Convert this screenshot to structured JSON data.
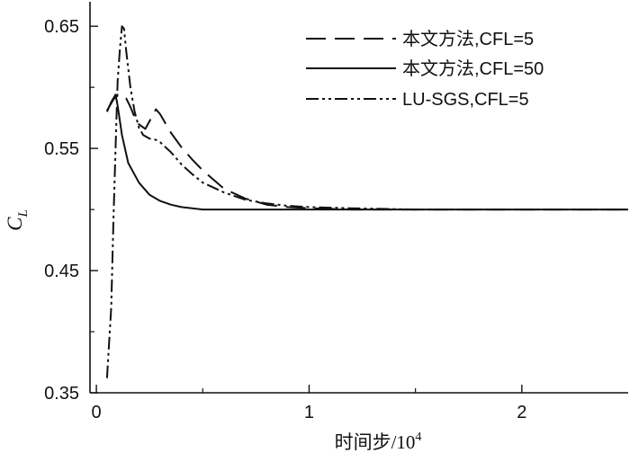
{
  "chart_data": {
    "type": "line",
    "xlabel": "时间步/10",
    "xlabel_sup": "4",
    "ylabel": "C",
    "ylabel_sub": "L",
    "xlim": [
      -0.03,
      2.5
    ],
    "ylim": [
      0.35,
      0.67
    ],
    "x_ticks": [
      0,
      1,
      2
    ],
    "x_tick_labels": [
      "0",
      "1",
      "2"
    ],
    "y_ticks": [
      0.35,
      0.45,
      0.55,
      0.65
    ],
    "y_tick_labels": [
      "0.35",
      "0.45",
      "0.55",
      "0.65"
    ],
    "grid": false,
    "legend_position": "top-right",
    "series": [
      {
        "name": "本文方法,CFL=5",
        "style": "dashed",
        "x": [
          0.05,
          0.08,
          0.1,
          0.12,
          0.14,
          0.16,
          0.19,
          0.23,
          0.28,
          0.3,
          0.35,
          0.4,
          0.45,
          0.5,
          0.6,
          0.7,
          0.8,
          0.9,
          1.0,
          1.2,
          1.5,
          2.0,
          2.5
        ],
        "y": [
          0.581,
          0.59,
          0.594,
          0.594,
          0.591,
          0.584,
          0.571,
          0.566,
          0.582,
          0.578,
          0.563,
          0.551,
          0.541,
          0.532,
          0.517,
          0.509,
          0.504,
          0.502,
          0.501,
          0.5,
          0.5,
          0.5,
          0.5
        ]
      },
      {
        "name": "本文方法,CFL=50",
        "style": "solid",
        "x": [
          0.05,
          0.07,
          0.09,
          0.1,
          0.12,
          0.15,
          0.2,
          0.25,
          0.3,
          0.35,
          0.4,
          0.5,
          0.6,
          0.8,
          1.0,
          1.5,
          2.0,
          2.5
        ],
        "y": [
          0.58,
          0.588,
          0.594,
          0.585,
          0.561,
          0.538,
          0.522,
          0.512,
          0.507,
          0.504,
          0.502,
          0.5,
          0.5,
          0.5,
          0.5,
          0.5,
          0.5,
          0.5
        ]
      },
      {
        "name": "LU-SGS,CFL=5",
        "style": "dash-dot-dot",
        "x": [
          0.05,
          0.07,
          0.08,
          0.09,
          0.1,
          0.11,
          0.12,
          0.13,
          0.14,
          0.16,
          0.18,
          0.2,
          0.22,
          0.25,
          0.28,
          0.3,
          0.35,
          0.4,
          0.45,
          0.5,
          0.6,
          0.7,
          0.8,
          0.9,
          1.0,
          1.2,
          1.5,
          2.0,
          2.5
        ],
        "y": [
          0.362,
          0.42,
          0.49,
          0.55,
          0.605,
          0.63,
          0.65,
          0.648,
          0.63,
          0.6,
          0.58,
          0.567,
          0.561,
          0.558,
          0.557,
          0.555,
          0.547,
          0.537,
          0.529,
          0.522,
          0.514,
          0.508,
          0.505,
          0.503,
          0.502,
          0.501,
          0.5,
          0.5,
          0.5
        ]
      }
    ]
  }
}
